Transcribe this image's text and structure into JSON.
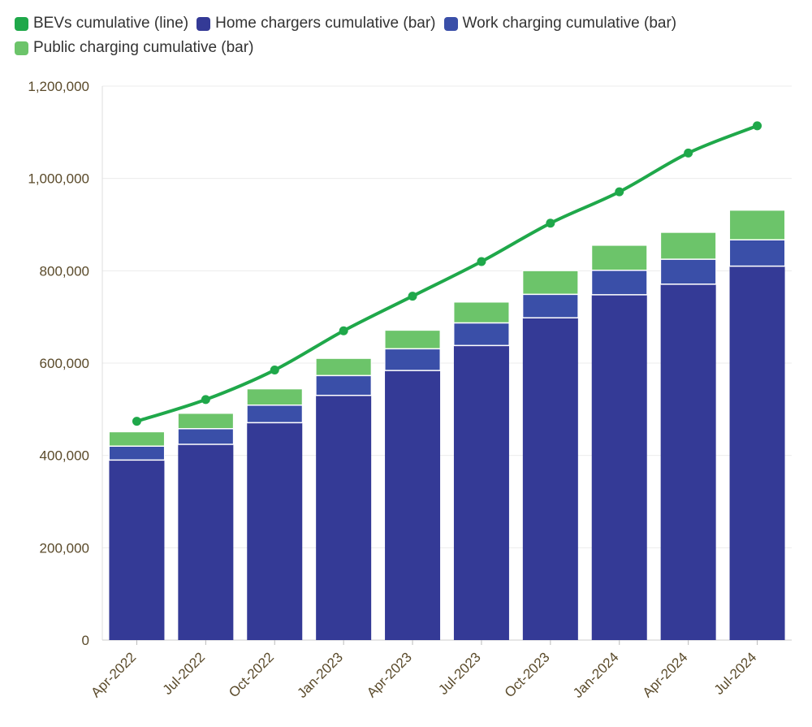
{
  "chart_data": {
    "type": "bar",
    "stacked": true,
    "categories": [
      "Apr-2022",
      "Jul-2022",
      "Oct-2022",
      "Jan-2023",
      "Apr-2023",
      "Jul-2023",
      "Oct-2023",
      "Jan-2024",
      "Apr-2024",
      "Jul-2024"
    ],
    "series": [
      {
        "name": "Home chargers cumulative (bar)",
        "kind": "bar",
        "color": "#343A96",
        "values": [
          390000,
          424000,
          471000,
          530000,
          584000,
          638000,
          698000,
          748000,
          771000,
          810000
        ]
      },
      {
        "name": "Work charging cumulative (bar)",
        "kind": "bar",
        "color": "#3A4FA8",
        "values": [
          30000,
          34000,
          38000,
          43000,
          47000,
          49000,
          51000,
          53000,
          54000,
          57000
        ]
      },
      {
        "name": "Public charging cumulative (bar)",
        "kind": "bar",
        "color": "#6CC46A",
        "values": [
          31000,
          33000,
          35000,
          37000,
          40000,
          45000,
          51000,
          54000,
          58000,
          64000
        ]
      },
      {
        "name": "BEVs cumulative (line)",
        "kind": "line",
        "color": "#1FA84A",
        "values": [
          474000,
          521000,
          585000,
          670000,
          745000,
          820000,
          903000,
          971000,
          1055000,
          1114000
        ]
      }
    ],
    "legend_order": [
      "BEVs cumulative (line)",
      "Home chargers cumulative (bar)",
      "Work charging cumulative (bar)",
      "Public charging cumulative (bar)"
    ],
    "legend_position": "top-left",
    "ylim": [
      0,
      1200000
    ],
    "yticks": [
      0,
      200000,
      400000,
      600000,
      800000,
      1000000,
      1200000
    ],
    "ytick_labels": [
      "0",
      "200,000",
      "400,000",
      "600,000",
      "800,000",
      "1,000,000",
      "1,200,000"
    ],
    "grid": true
  }
}
